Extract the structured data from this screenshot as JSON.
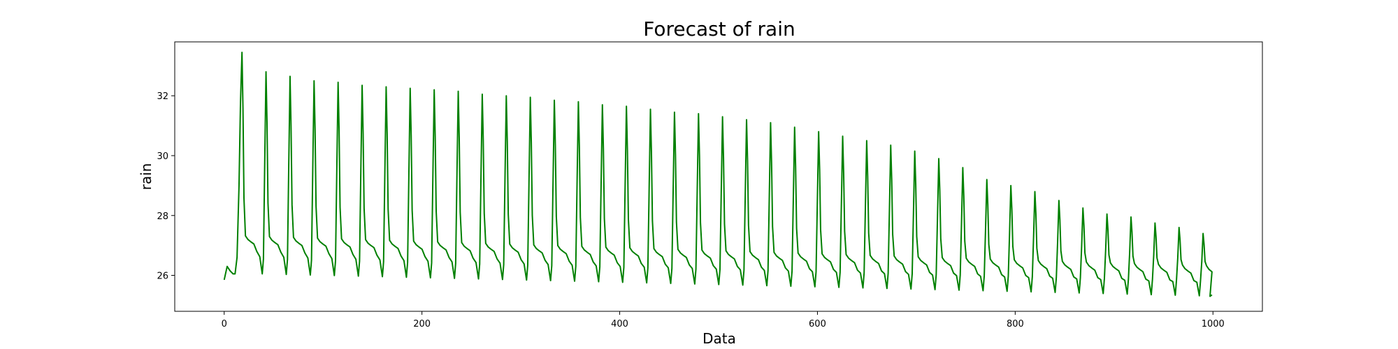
{
  "chart_data": {
    "type": "line",
    "title": "Forecast of rain",
    "xlabel": "Data",
    "ylabel": "rain",
    "xlim": [
      -50,
      1050
    ],
    "ylim": [
      24.8,
      33.8
    ],
    "xticks": [
      0,
      200,
      400,
      600,
      800,
      1000
    ],
    "yticks": [
      26,
      28,
      30,
      32
    ],
    "grid": false,
    "legend": false,
    "series": [
      {
        "color": "#008000",
        "cycle": {
          "start_x": 0,
          "end_x": 999,
          "period": 24.3,
          "first_peak_x": 18,
          "peak_values": [
            33.45,
            32.8,
            32.65,
            32.5,
            32.45,
            32.35,
            32.3,
            32.25,
            32.2,
            32.15,
            32.05,
            32.0,
            31.95,
            31.85,
            31.8,
            31.7,
            31.65,
            31.55,
            31.45,
            31.4,
            31.3,
            31.2,
            31.1,
            30.95,
            30.8,
            30.65,
            30.5,
            30.35,
            30.15,
            29.9,
            29.6,
            29.2,
            29.0,
            28.8,
            28.5,
            28.25,
            28.05,
            27.95,
            27.75,
            27.6,
            27.4
          ],
          "shoulder_start": 27.2,
          "shoulder_end": 26.2,
          "trough_start": 26.05,
          "trough_end": 25.3,
          "first_value": 25.85,
          "last_value": 25.3
        }
      }
    ]
  }
}
